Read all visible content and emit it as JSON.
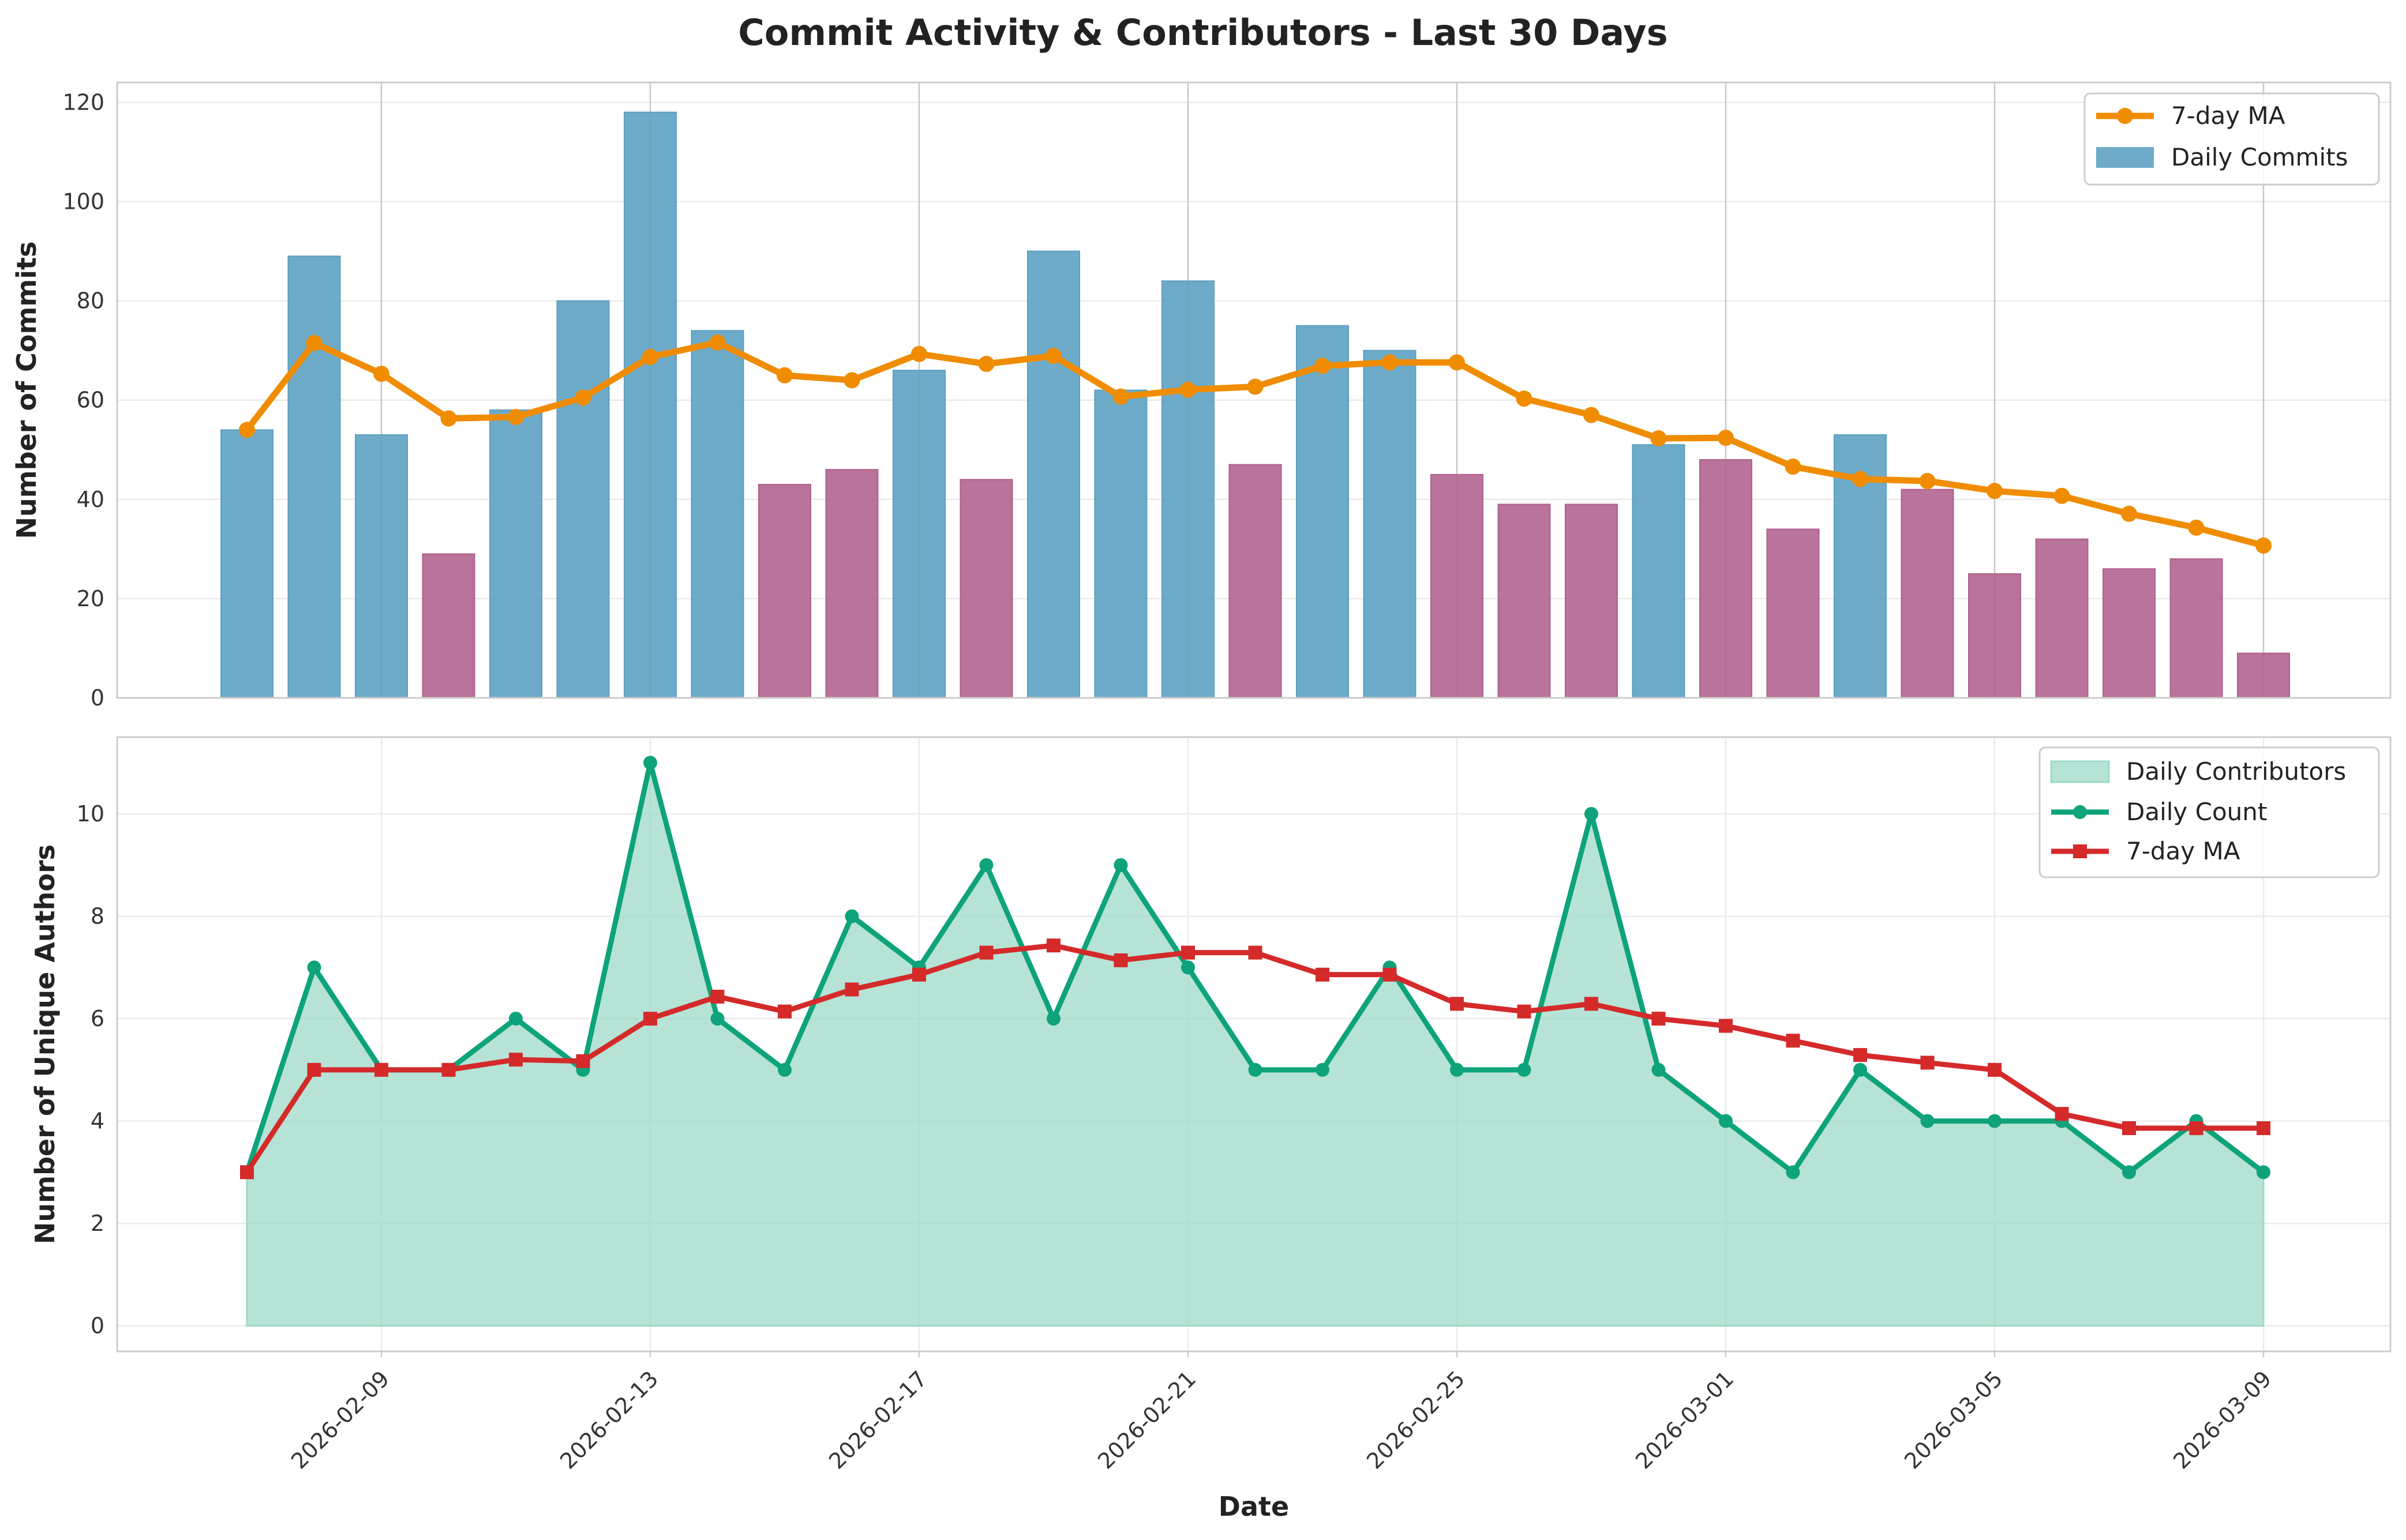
{
  "chart_data": [
    {
      "type": "bar",
      "title": "Commit Activity & Contributors - Last 30 Days",
      "xlabel": "",
      "ylabel": "Number of Commits",
      "ylim": [
        0,
        124
      ],
      "yticks": [
        0,
        20,
        40,
        60,
        80,
        100,
        120
      ],
      "x": [
        "2026-02-07",
        "2026-02-08",
        "2026-02-09",
        "2026-02-10",
        "2026-02-11",
        "2026-02-12",
        "2026-02-13",
        "2026-02-14",
        "2026-02-15",
        "2026-02-16",
        "2026-02-17",
        "2026-02-18",
        "2026-02-19",
        "2026-02-20",
        "2026-02-21",
        "2026-02-22",
        "2026-02-23",
        "2026-02-24",
        "2026-02-25",
        "2026-02-26",
        "2026-02-27",
        "2026-02-28",
        "2026-03-01",
        "2026-03-02",
        "2026-03-03",
        "2026-03-04",
        "2026-03-05",
        "2026-03-06",
        "2026-03-07",
        "2026-03-08",
        "2026-03-09"
      ],
      "series": [
        {
          "name": "Daily Commits",
          "kind": "bar",
          "values": [
            54,
            89,
            53,
            29,
            58,
            80,
            118,
            74,
            43,
            46,
            66,
            44,
            90,
            62,
            84,
            47,
            75,
            70,
            45,
            39,
            39,
            51,
            48,
            34,
            53,
            42,
            25,
            32,
            26,
            28,
            9
          ],
          "color": "#5a9fc0",
          "alt_color": "#b0608c",
          "note": "bars under 50 drawn in the alternate colour"
        },
        {
          "name": "7-day MA",
          "kind": "line",
          "values": [
            54,
            71.5,
            65.3,
            56.3,
            56.6,
            60.5,
            68.7,
            71.6,
            65,
            64,
            69.3,
            67.3,
            68.9,
            60.7,
            62.1,
            62.7,
            66.9,
            67.6,
            67.6,
            60.3,
            57,
            52.3,
            52.4,
            46.6,
            44.1,
            43.7,
            41.7,
            40.7,
            37.1,
            34.3,
            30.7
          ],
          "color": "#f08c00"
        }
      ],
      "legend": {
        "position": "top-right",
        "entries": [
          "7-day MA",
          "Daily Commits"
        ]
      }
    },
    {
      "type": "line",
      "xlabel": "Date",
      "ylabel": "Number of Unique Authors",
      "ylim": [
        -0.5,
        11.5
      ],
      "yticks": [
        0,
        2,
        4,
        6,
        8,
        10
      ],
      "x": [
        "2026-02-07",
        "2026-02-08",
        "2026-02-09",
        "2026-02-10",
        "2026-02-11",
        "2026-02-12",
        "2026-02-13",
        "2026-02-14",
        "2026-02-15",
        "2026-02-16",
        "2026-02-17",
        "2026-02-18",
        "2026-02-19",
        "2026-02-20",
        "2026-02-21",
        "2026-02-22",
        "2026-02-23",
        "2026-02-24",
        "2026-02-25",
        "2026-02-26",
        "2026-02-27",
        "2026-02-28",
        "2026-03-01",
        "2026-03-02",
        "2026-03-03",
        "2026-03-04",
        "2026-03-05",
        "2026-03-06",
        "2026-03-07",
        "2026-03-08",
        "2026-03-09"
      ],
      "xticks": [
        "2026-02-09",
        "2026-02-13",
        "2026-02-17",
        "2026-02-21",
        "2026-02-25",
        "2026-03-01",
        "2026-03-05",
        "2026-03-09"
      ],
      "series": [
        {
          "name": "Daily Contributors",
          "kind": "area",
          "values": [
            3,
            7,
            5,
            5,
            6,
            5,
            11,
            6,
            5,
            8,
            7,
            9,
            6,
            9,
            7,
            5,
            5,
            7,
            5,
            5,
            10,
            5,
            4,
            3,
            5,
            4,
            4,
            4,
            3,
            4,
            3
          ],
          "color": "#9ed9c8"
        },
        {
          "name": "Daily Count",
          "kind": "line",
          "values": [
            3,
            7,
            5,
            5,
            6,
            5,
            11,
            6,
            5,
            8,
            7,
            9,
            6,
            9,
            7,
            5,
            5,
            7,
            5,
            5,
            10,
            5,
            4,
            3,
            5,
            4,
            4,
            4,
            3,
            4,
            3
          ],
          "color": "#0ea37a"
        },
        {
          "name": "7-day MA",
          "kind": "line",
          "values": [
            3,
            5,
            5,
            5,
            5.2,
            5.17,
            6,
            6.43,
            6.14,
            6.57,
            6.86,
            7.29,
            7.43,
            7.14,
            7.29,
            7.29,
            6.86,
            6.86,
            6.29,
            6.14,
            6.29,
            6,
            5.86,
            5.57,
            5.29,
            5.14,
            5,
            4.14,
            3.86,
            3.86,
            3.86
          ],
          "color": "#d42a2a"
        }
      ],
      "legend": {
        "position": "top-right",
        "entries": [
          "Daily Contributors",
          "Daily Count",
          "7-day MA"
        ]
      }
    }
  ]
}
